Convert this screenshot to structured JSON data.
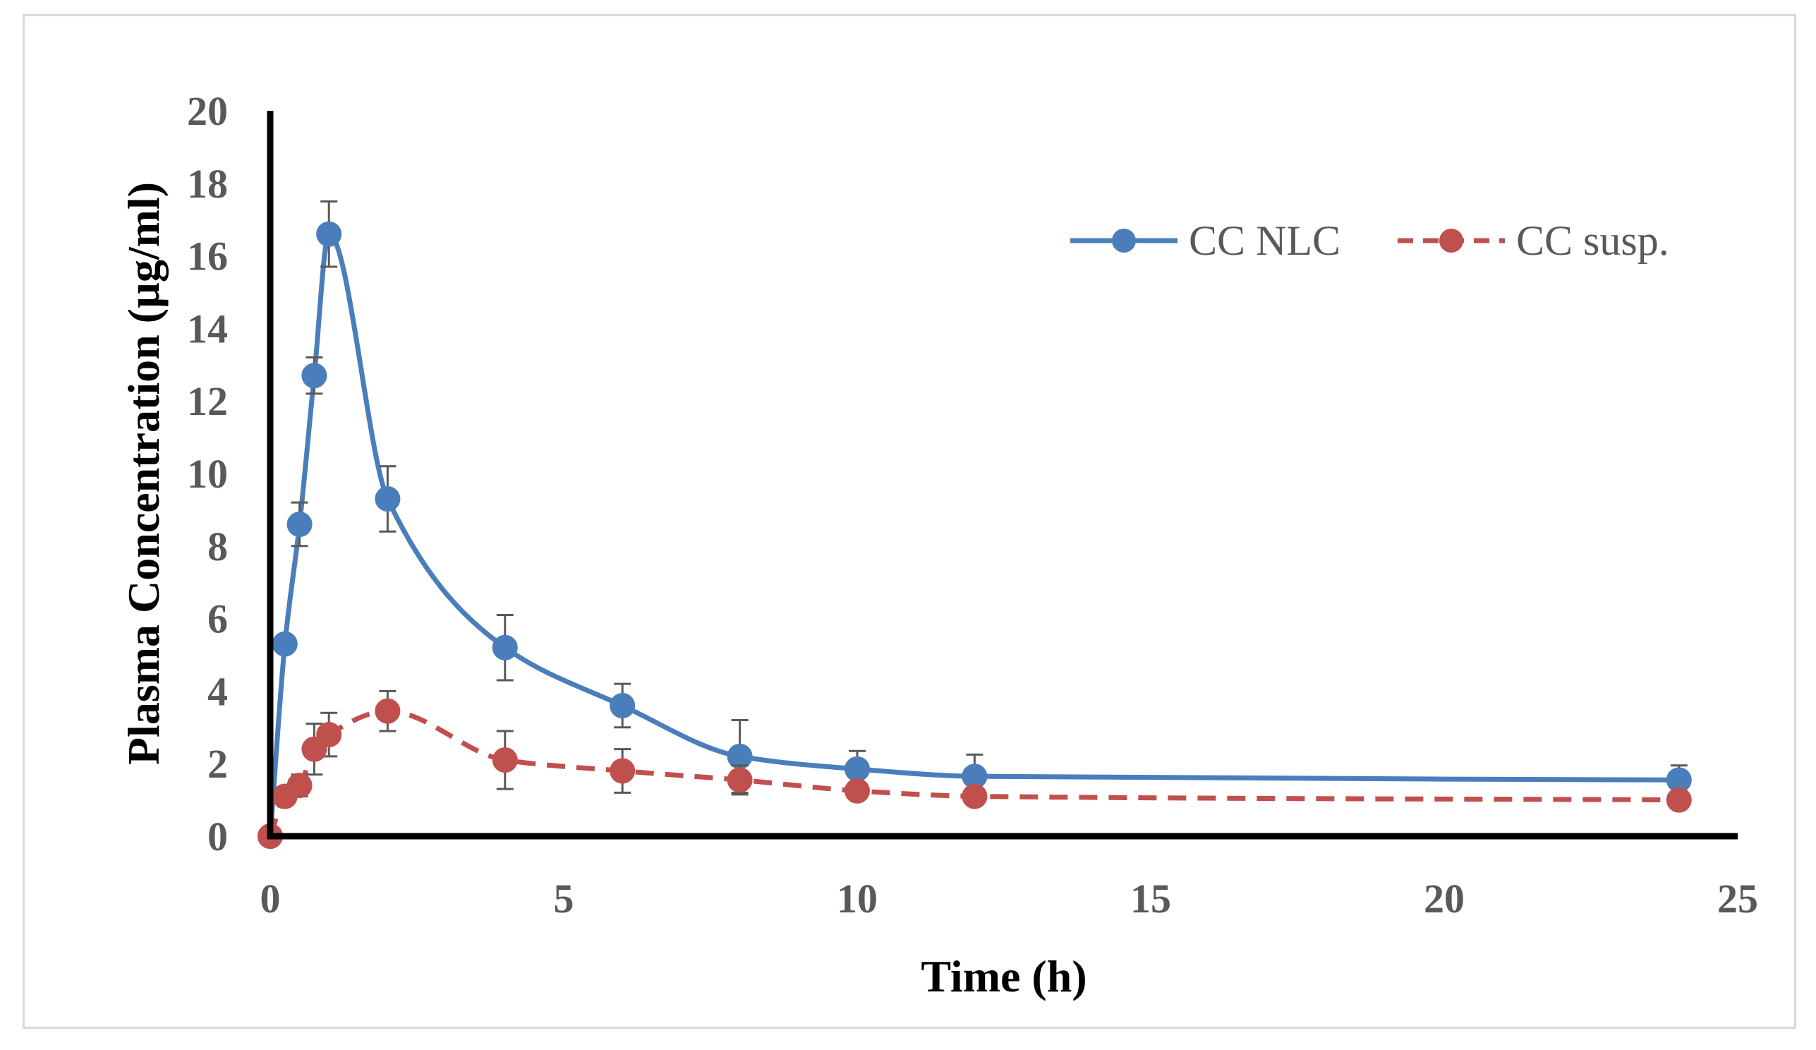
{
  "chart_data": {
    "type": "line",
    "title": "",
    "xlabel": "Time (h)",
    "ylabel": "Plasma Concentration (µg/ml)",
    "xlim": [
      0,
      25
    ],
    "ylim": [
      0,
      20
    ],
    "xticks": [
      0,
      5,
      10,
      15,
      20,
      25
    ],
    "yticks": [
      0,
      2,
      4,
      6,
      8,
      10,
      12,
      14,
      16,
      18,
      20
    ],
    "grid": false,
    "legend_position": "top-right",
    "series": [
      {
        "name": "CC NLC",
        "color": "#4a7ebb",
        "line_style": "solid",
        "smooth": true,
        "x": [
          0,
          0.25,
          0.5,
          0.75,
          1,
          2,
          4,
          6,
          8,
          10,
          12,
          24
        ],
        "y": [
          0,
          5.3,
          8.6,
          12.7,
          16.6,
          9.3,
          5.2,
          3.6,
          2.2,
          1.85,
          1.65,
          1.55
        ],
        "error": [
          0,
          0,
          0.6,
          0.5,
          0.9,
          0.9,
          0.9,
          0.6,
          1.0,
          0.5,
          0.6,
          0.4
        ]
      },
      {
        "name": "CC susp.",
        "color": "#c0504d",
        "line_style": "dashed",
        "smooth": true,
        "x": [
          0,
          0.25,
          0.5,
          0.75,
          1,
          2,
          4,
          6,
          8,
          10,
          12,
          24
        ],
        "y": [
          0,
          1.1,
          1.4,
          2.4,
          2.8,
          3.45,
          2.1,
          1.8,
          1.55,
          1.25,
          1.1,
          1.0
        ],
        "error": [
          0,
          0.2,
          0.3,
          0.7,
          0.6,
          0.55,
          0.8,
          0.6,
          0.4,
          0.15,
          0.1,
          0.1
        ]
      }
    ]
  }
}
